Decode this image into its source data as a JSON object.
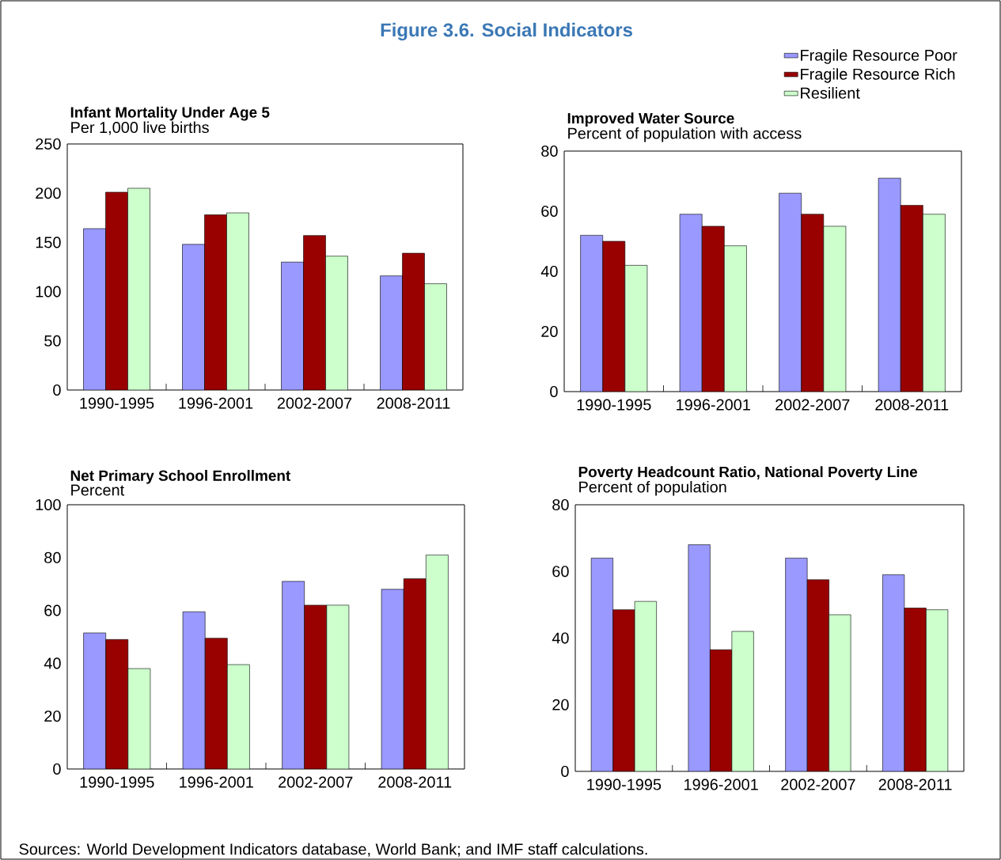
{
  "chart_data": [
    {
      "type": "other",
      "title": "Figure 3.6. Social Indicators",
      "annotations": [
        "Sources: World Development Indicators database, World Bank; and IMF staff calculations."
      ]
    },
    {
      "type": "bar",
      "title": "Infant Mortality Under Age 5",
      "subtitle": "Per 1,000 live births",
      "categories": [
        "1990-1995",
        "1996-2001",
        "2002-2007",
        "2008-2011"
      ],
      "ylim": [
        0,
        250
      ],
      "yticks": [
        0,
        50,
        100,
        150,
        200,
        250
      ],
      "series": [
        {
          "color": "#9999ff",
          "values": [
            164,
            148,
            130,
            116
          ]
        },
        {
          "color": "#990000",
          "values": [
            201,
            178,
            157,
            139
          ]
        },
        {
          "color": "#ccffcc",
          "values": [
            205,
            180,
            136,
            108
          ]
        }
      ]
    },
    {
      "type": "bar",
      "title": "Improved Water Source",
      "subtitle": "Percent of population with access",
      "categories": [
        "1990-1995",
        "1996-2001",
        "2002-2007",
        "2008-2011"
      ],
      "ylim": [
        0,
        80
      ],
      "yticks": [
        0,
        20,
        40,
        60,
        80
      ],
      "legend": "top right",
      "series": [
        {
          "name": "Fragile Resource Poor",
          "color": "#9999ff",
          "values": [
            52,
            59,
            66,
            71
          ]
        },
        {
          "name": "Fragile Resource Rich",
          "color": "#990000",
          "values": [
            50,
            55,
            59,
            62
          ]
        },
        {
          "name": "Resilient",
          "color": "#ccffcc",
          "values": [
            42,
            48.5,
            55,
            59
          ]
        }
      ]
    },
    {
      "type": "bar",
      "title": "Net Primary School Enrollment",
      "subtitle": "Percent",
      "categories": [
        "1990-1995",
        "1996-2001",
        "2002-2007",
        "2008-2011"
      ],
      "ylim": [
        0,
        100
      ],
      "yticks": [
        0,
        20,
        40,
        60,
        80,
        100
      ],
      "series": [
        {
          "color": "#9999ff",
          "values": [
            51.5,
            59.5,
            71,
            68
          ]
        },
        {
          "color": "#990000",
          "values": [
            49,
            49.5,
            62,
            72
          ]
        },
        {
          "color": "#ccffcc",
          "values": [
            38,
            39.5,
            62,
            81
          ]
        }
      ]
    },
    {
      "type": "bar",
      "title": "Poverty Headcount Ratio, National Poverty Line",
      "subtitle": "Percent of population",
      "categories": [
        "1990-1995",
        "1996-2001",
        "2002-2007",
        "2008-2011"
      ],
      "ylim": [
        0,
        80
      ],
      "yticks": [
        0,
        20,
        40,
        60,
        80
      ],
      "series": [
        {
          "color": "#9999ff",
          "values": [
            64,
            68,
            64,
            59
          ]
        },
        {
          "color": "#990000",
          "values": [
            48.5,
            36.5,
            57.5,
            49
          ]
        },
        {
          "color": "#ccffcc",
          "values": [
            51,
            42,
            47,
            48.5
          ]
        }
      ]
    }
  ]
}
